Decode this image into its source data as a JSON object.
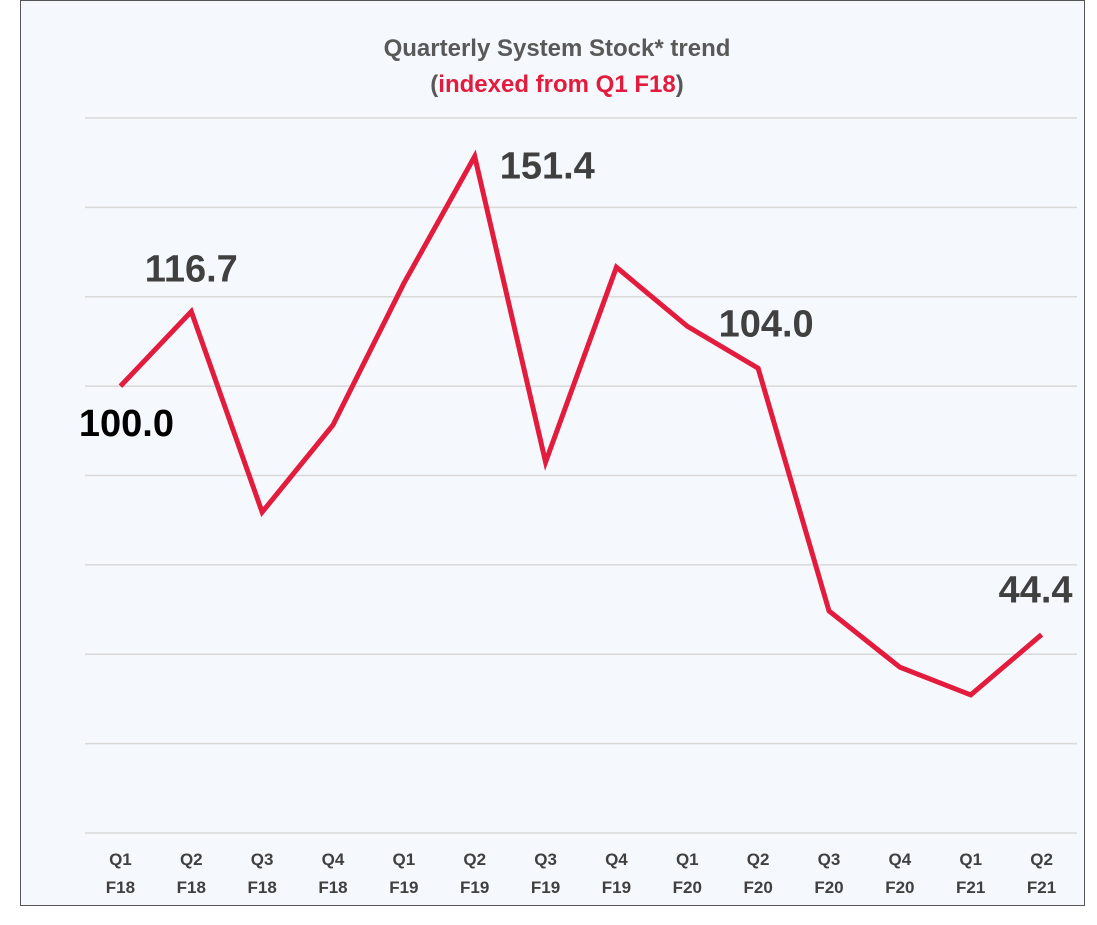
{
  "chart_data": {
    "type": "line",
    "title": "Quarterly System Stock* trend",
    "subtitle_parts": [
      "(",
      "indexed from Q1 F18",
      ")"
    ],
    "categories": [
      "Q1 F18",
      "Q2 F18",
      "Q3 F18",
      "Q4 F18",
      "Q1 F19",
      "Q2 F19",
      "Q3 F19",
      "Q4 F19",
      "Q1 F20",
      "Q2 F20",
      "Q3 F20",
      "Q4 F20",
      "Q1 F21",
      "Q2 F21"
    ],
    "values": [
      100.0,
      116.7,
      71.8,
      91.3,
      123.0,
      151.4,
      83.0,
      126.6,
      113.4,
      104.0,
      49.7,
      37.1,
      30.9,
      44.4
    ],
    "value_labels": [
      "100.0",
      "116.7",
      null,
      null,
      null,
      "151.4",
      null,
      null,
      null,
      "104.0",
      null,
      null,
      null,
      "44.4"
    ],
    "color": "#e31c3d",
    "ylim": [
      0,
      160
    ],
    "yticks": [
      0,
      20,
      40,
      60,
      80,
      100,
      120,
      140,
      160
    ],
    "grid": true
  }
}
